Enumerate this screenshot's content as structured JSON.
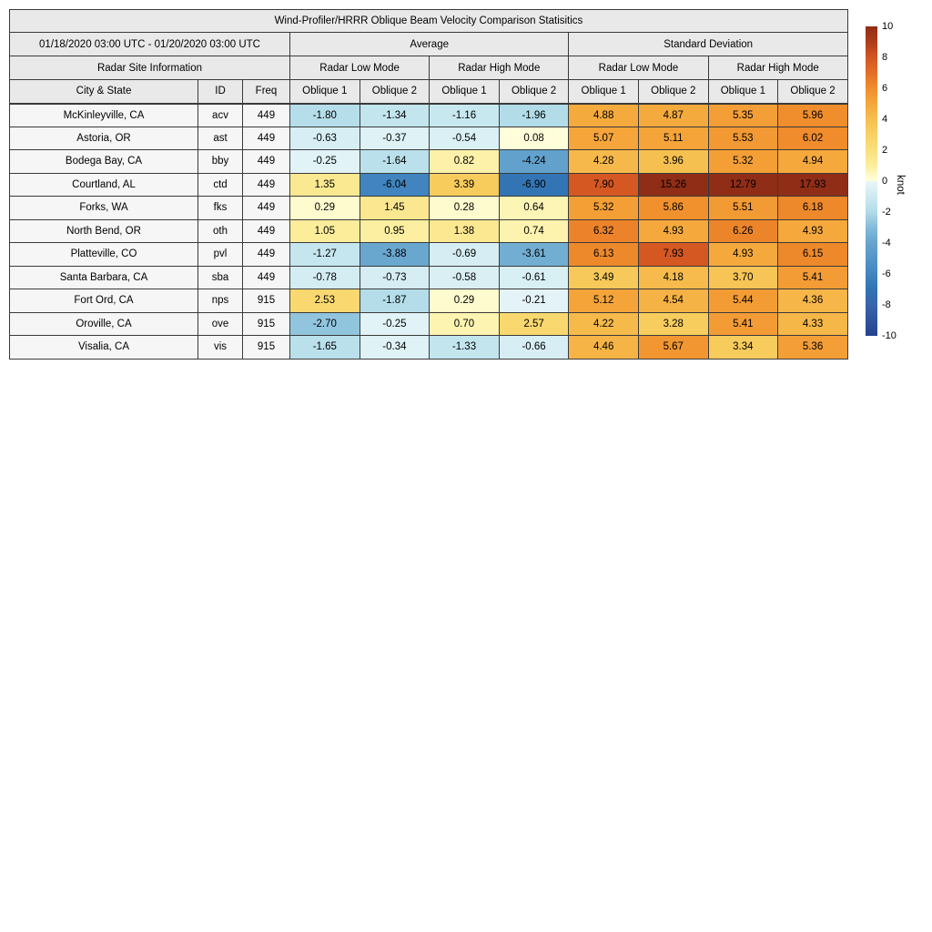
{
  "table": {
    "title": "Wind-Profiler/HRRR Oblique Beam Velocity Comparison Statisitics",
    "date_range": "01/18/2020 03:00 UTC - 01/20/2020 03:00 UTC",
    "site_info_header": "Radar Site Information",
    "groups": [
      "Average",
      "Standard Deviation"
    ],
    "mode_headers": [
      "Radar Low Mode",
      "Radar High Mode",
      "Radar Low Mode",
      "Radar High Mode"
    ],
    "columns": [
      "City & State",
      "ID",
      "Freq",
      "Oblique 1",
      "Oblique 2",
      "Oblique 1",
      "Oblique 2",
      "Oblique 1",
      "Oblique 2",
      "Oblique 1",
      "Oblique 2"
    ]
  },
  "colorbar": {
    "label": "knot",
    "vmin": -10,
    "vmax": 10,
    "ticks": [
      10,
      8,
      6,
      4,
      2,
      0,
      -2,
      -4,
      -6,
      -8,
      -10
    ],
    "anchors": [
      [
        -10,
        "#26418e"
      ],
      [
        -9,
        "#2e549b"
      ],
      [
        -8,
        "#3765ab"
      ],
      [
        -7,
        "#3173b3"
      ],
      [
        -6,
        "#4285c0"
      ],
      [
        -5,
        "#5496c8"
      ],
      [
        -4,
        "#66a4cd"
      ],
      [
        -3,
        "#84bcda"
      ],
      [
        -2,
        "#b0dbe8"
      ],
      [
        -1,
        "#cdeaf1"
      ],
      [
        -0.001,
        "#e9f6f9"
      ],
      [
        0,
        "#fffede"
      ],
      [
        0.3,
        "#fefbce"
      ],
      [
        1,
        "#fcee9d"
      ],
      [
        2,
        "#fadf7e"
      ],
      [
        3,
        "#f8d264"
      ],
      [
        4,
        "#f6bf50"
      ],
      [
        5,
        "#f5a73b"
      ],
      [
        6,
        "#f08d2c"
      ],
      [
        7,
        "#e26f26"
      ],
      [
        8,
        "#d45521"
      ],
      [
        9,
        "#ad3c1b"
      ],
      [
        10,
        "#902d17"
      ]
    ]
  },
  "chart_data": {
    "type": "heatmap",
    "title": "Wind-Profiler/HRRR Oblique Beam Velocity Comparison Statisitics",
    "subtitle": "01/18/2020 03:00 UTC - 01/20/2020 03:00 UTC",
    "unit": "knot",
    "vmin": -10,
    "vmax": 10,
    "colormap_note": "diverging blue-white-yellow-orange-red, values clamped at +/-10",
    "value_columns": [
      "Average Radar Low Mode Oblique 1",
      "Average Radar Low Mode Oblique 2",
      "Average Radar High Mode Oblique 1",
      "Average Radar High Mode Oblique 2",
      "Standard Deviation Radar Low Mode Oblique 1",
      "Standard Deviation Radar Low Mode Oblique 2",
      "Standard Deviation Radar High Mode Oblique 1",
      "Standard Deviation Radar High Mode Oblique 2"
    ],
    "rows": [
      {
        "city": "McKinleyville, CA",
        "id": "acv",
        "freq": "449",
        "values": [
          -1.8,
          -1.34,
          -1.16,
          -1.96,
          4.88,
          4.87,
          5.35,
          5.96
        ]
      },
      {
        "city": "Astoria, OR",
        "id": "ast",
        "freq": "449",
        "values": [
          -0.63,
          -0.37,
          -0.54,
          0.08,
          5.07,
          5.11,
          5.53,
          6.02
        ]
      },
      {
        "city": "Bodega Bay, CA",
        "id": "bby",
        "freq": "449",
        "values": [
          -0.25,
          -1.64,
          0.82,
          -4.24,
          4.28,
          3.96,
          5.32,
          4.94
        ]
      },
      {
        "city": "Courtland, AL",
        "id": "ctd",
        "freq": "449",
        "values": [
          1.35,
          -6.04,
          3.39,
          -6.9,
          7.9,
          15.26,
          12.79,
          17.93
        ]
      },
      {
        "city": "Forks, WA",
        "id": "fks",
        "freq": "449",
        "values": [
          0.29,
          1.45,
          0.28,
          0.64,
          5.32,
          5.86,
          5.51,
          6.18
        ]
      },
      {
        "city": "North Bend, OR",
        "id": "oth",
        "freq": "449",
        "values": [
          1.05,
          0.95,
          1.38,
          0.74,
          6.32,
          4.93,
          6.26,
          4.93
        ]
      },
      {
        "city": "Platteville, CO",
        "id": "pvl",
        "freq": "449",
        "values": [
          -1.27,
          -3.88,
          -0.69,
          -3.61,
          6.13,
          7.93,
          4.93,
          6.15
        ]
      },
      {
        "city": "Santa Barbara, CA",
        "id": "sba",
        "freq": "449",
        "values": [
          -0.78,
          -0.73,
          -0.58,
          -0.61,
          3.49,
          4.18,
          3.7,
          5.41
        ]
      },
      {
        "city": "Fort Ord, CA",
        "id": "nps",
        "freq": "915",
        "values": [
          2.53,
          -1.87,
          0.29,
          -0.21,
          5.12,
          4.54,
          5.44,
          4.36
        ]
      },
      {
        "city": "Oroville, CA",
        "id": "ove",
        "freq": "915",
        "values": [
          -2.7,
          -0.25,
          0.7,
          2.57,
          4.22,
          3.28,
          5.41,
          4.33
        ]
      },
      {
        "city": "Visalia, CA",
        "id": "vis",
        "freq": "915",
        "values": [
          -1.65,
          -0.34,
          -1.33,
          -0.66,
          4.46,
          5.67,
          3.34,
          5.36
        ]
      }
    ]
  }
}
